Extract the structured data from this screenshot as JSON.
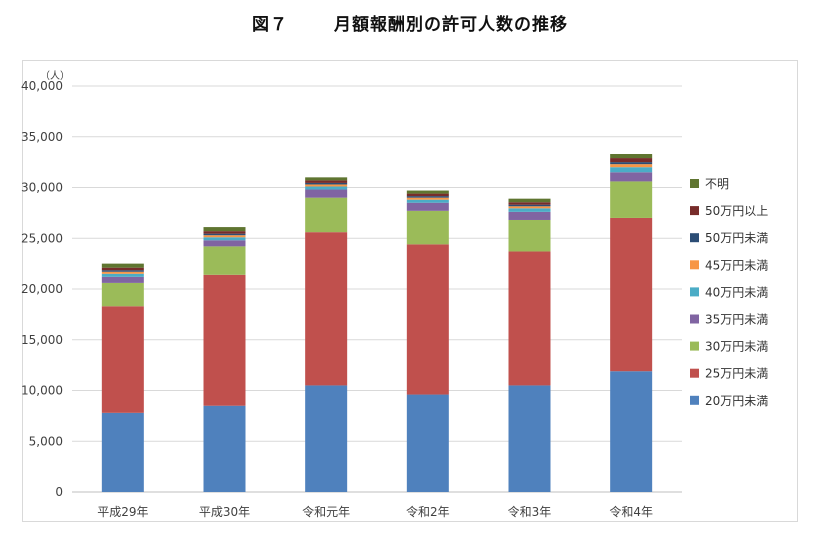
{
  "figure": {
    "number": "図７",
    "title": "月額報酬別の許可人数の推移"
  },
  "chart_data": {
    "type": "bar",
    "stacked": true,
    "title": "月額報酬別の許可人数の推移",
    "ylabel": "（人）",
    "xlabel": "",
    "ylim": [
      0,
      40000
    ],
    "yticks": [
      0,
      5000,
      10000,
      15000,
      20000,
      25000,
      30000,
      35000,
      40000
    ],
    "ytick_labels": [
      "0",
      "5,000",
      "10,000",
      "15,000",
      "20,000",
      "25,000",
      "30,000",
      "35,000",
      "40,000"
    ],
    "grid": true,
    "legend_position": "right",
    "categories": [
      "平成29年",
      "平成30年",
      "令和元年",
      "令和2年",
      "令和3年",
      "令和4年"
    ],
    "series": [
      {
        "name": "20万円未満",
        "color": "#4F81BD",
        "values": [
          7800,
          8500,
          10500,
          9600,
          10500,
          11900
        ]
      },
      {
        "name": "25万円未満",
        "color": "#C0504D",
        "values": [
          10500,
          12900,
          15100,
          14800,
          13200,
          15100
        ]
      },
      {
        "name": "30万円未満",
        "color": "#9BBB59",
        "values": [
          2300,
          2800,
          3400,
          3300,
          3100,
          3600
        ]
      },
      {
        "name": "35万円未満",
        "color": "#8064A2",
        "values": [
          600,
          600,
          800,
          800,
          800,
          900
        ]
      },
      {
        "name": "40万円未満",
        "color": "#4BACC6",
        "values": [
          300,
          300,
          300,
          300,
          350,
          500
        ]
      },
      {
        "name": "45万円未満",
        "color": "#F79646",
        "values": [
          200,
          200,
          200,
          200,
          200,
          300
        ]
      },
      {
        "name": "50万円未満",
        "color": "#2C4D75",
        "values": [
          150,
          150,
          150,
          150,
          150,
          200
        ]
      },
      {
        "name": "50万円以上",
        "color": "#772C2A",
        "values": [
          250,
          250,
          250,
          250,
          250,
          400
        ]
      },
      {
        "name": "不明",
        "color": "#5F7530",
        "values": [
          400,
          400,
          300,
          300,
          350,
          400
        ]
      }
    ]
  }
}
